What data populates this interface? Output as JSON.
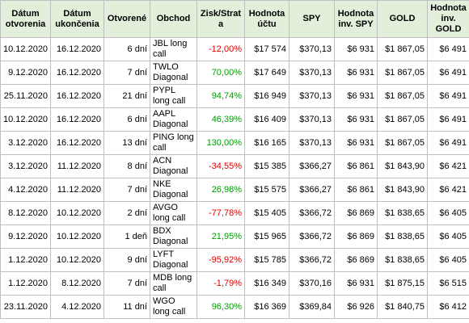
{
  "table": {
    "header": [
      "Dátum otvorenia",
      "Dátum ukončenia",
      "Otvorené",
      "Obchod",
      "Zisk/Strata",
      "Hodnota účtu",
      "SPY",
      "Hodnota inv. SPY",
      "GOLD",
      "Hodnota inv. GOLD"
    ],
    "rows": [
      [
        "10.12.2020",
        "16.12.2020",
        "6 dní",
        "JBL long call",
        "-12,00%",
        "$17 574",
        "$370,13",
        "$6 931",
        "$1 867,05",
        "$6 491"
      ],
      [
        "9.12.2020",
        "16.12.2020",
        "7 dní",
        "TWLO Diagonal",
        "70,00%",
        "$17 649",
        "$370,13",
        "$6 931",
        "$1 867,05",
        "$6 491"
      ],
      [
        "25.11.2020",
        "16.12.2020",
        "21 dní",
        "PYPL long call",
        "94,74%",
        "$16 949",
        "$370,13",
        "$6 931",
        "$1 867,05",
        "$6 491"
      ],
      [
        "10.12.2020",
        "16.12.2020",
        "6 dní",
        "AAPL Diagonal",
        "46,39%",
        "$16 409",
        "$370,13",
        "$6 931",
        "$1 867,05",
        "$6 491"
      ],
      [
        "3.12.2020",
        "16.12.2020",
        "13 dní",
        "PING long call",
        "130,00%",
        "$16 165",
        "$370,13",
        "$6 931",
        "$1 867,05",
        "$6 491"
      ],
      [
        "3.12.2020",
        "11.12.2020",
        "8 dní",
        "ACN Diagonal",
        "-34,55%",
        "$15 385",
        "$366,27",
        "$6 861",
        "$1 843,90",
        "$6 421"
      ],
      [
        "4.12.2020",
        "11.12.2020",
        "7 dní",
        "NKE Diagonal",
        "26,98%",
        "$15 575",
        "$366,27",
        "$6 861",
        "$1 843,90",
        "$6 421"
      ],
      [
        "8.12.2020",
        "10.12.2020",
        "2 dní",
        "AVGO long call",
        "-77,78%",
        "$15 405",
        "$366,72",
        "$6 869",
        "$1 838,65",
        "$6 405"
      ],
      [
        "9.12.2020",
        "10.12.2020",
        "1 deň",
        "BDX Diagonal",
        "21,95%",
        "$15 965",
        "$366,72",
        "$6 869",
        "$1 838,65",
        "$6 405"
      ],
      [
        "1.12.2020",
        "10.12.2020",
        "9 dní",
        "LYFT Diagonal",
        "-95,92%",
        "$15 785",
        "$366,72",
        "$6 869",
        "$1 838,65",
        "$6 405"
      ],
      [
        "1.12.2020",
        "8.12.2020",
        "7 dní",
        "MDB long call",
        "-1,79%",
        "$16 349",
        "$370,16",
        "$6 931",
        "$1 875,15",
        "$6 515"
      ],
      [
        "23.11.2020",
        "4.12.2020",
        "11 dní",
        "WGO long call",
        "96,30%",
        "$16 369",
        "$369,84",
        "$6 926",
        "$1 840,75",
        "$6 412"
      ]
    ]
  }
}
